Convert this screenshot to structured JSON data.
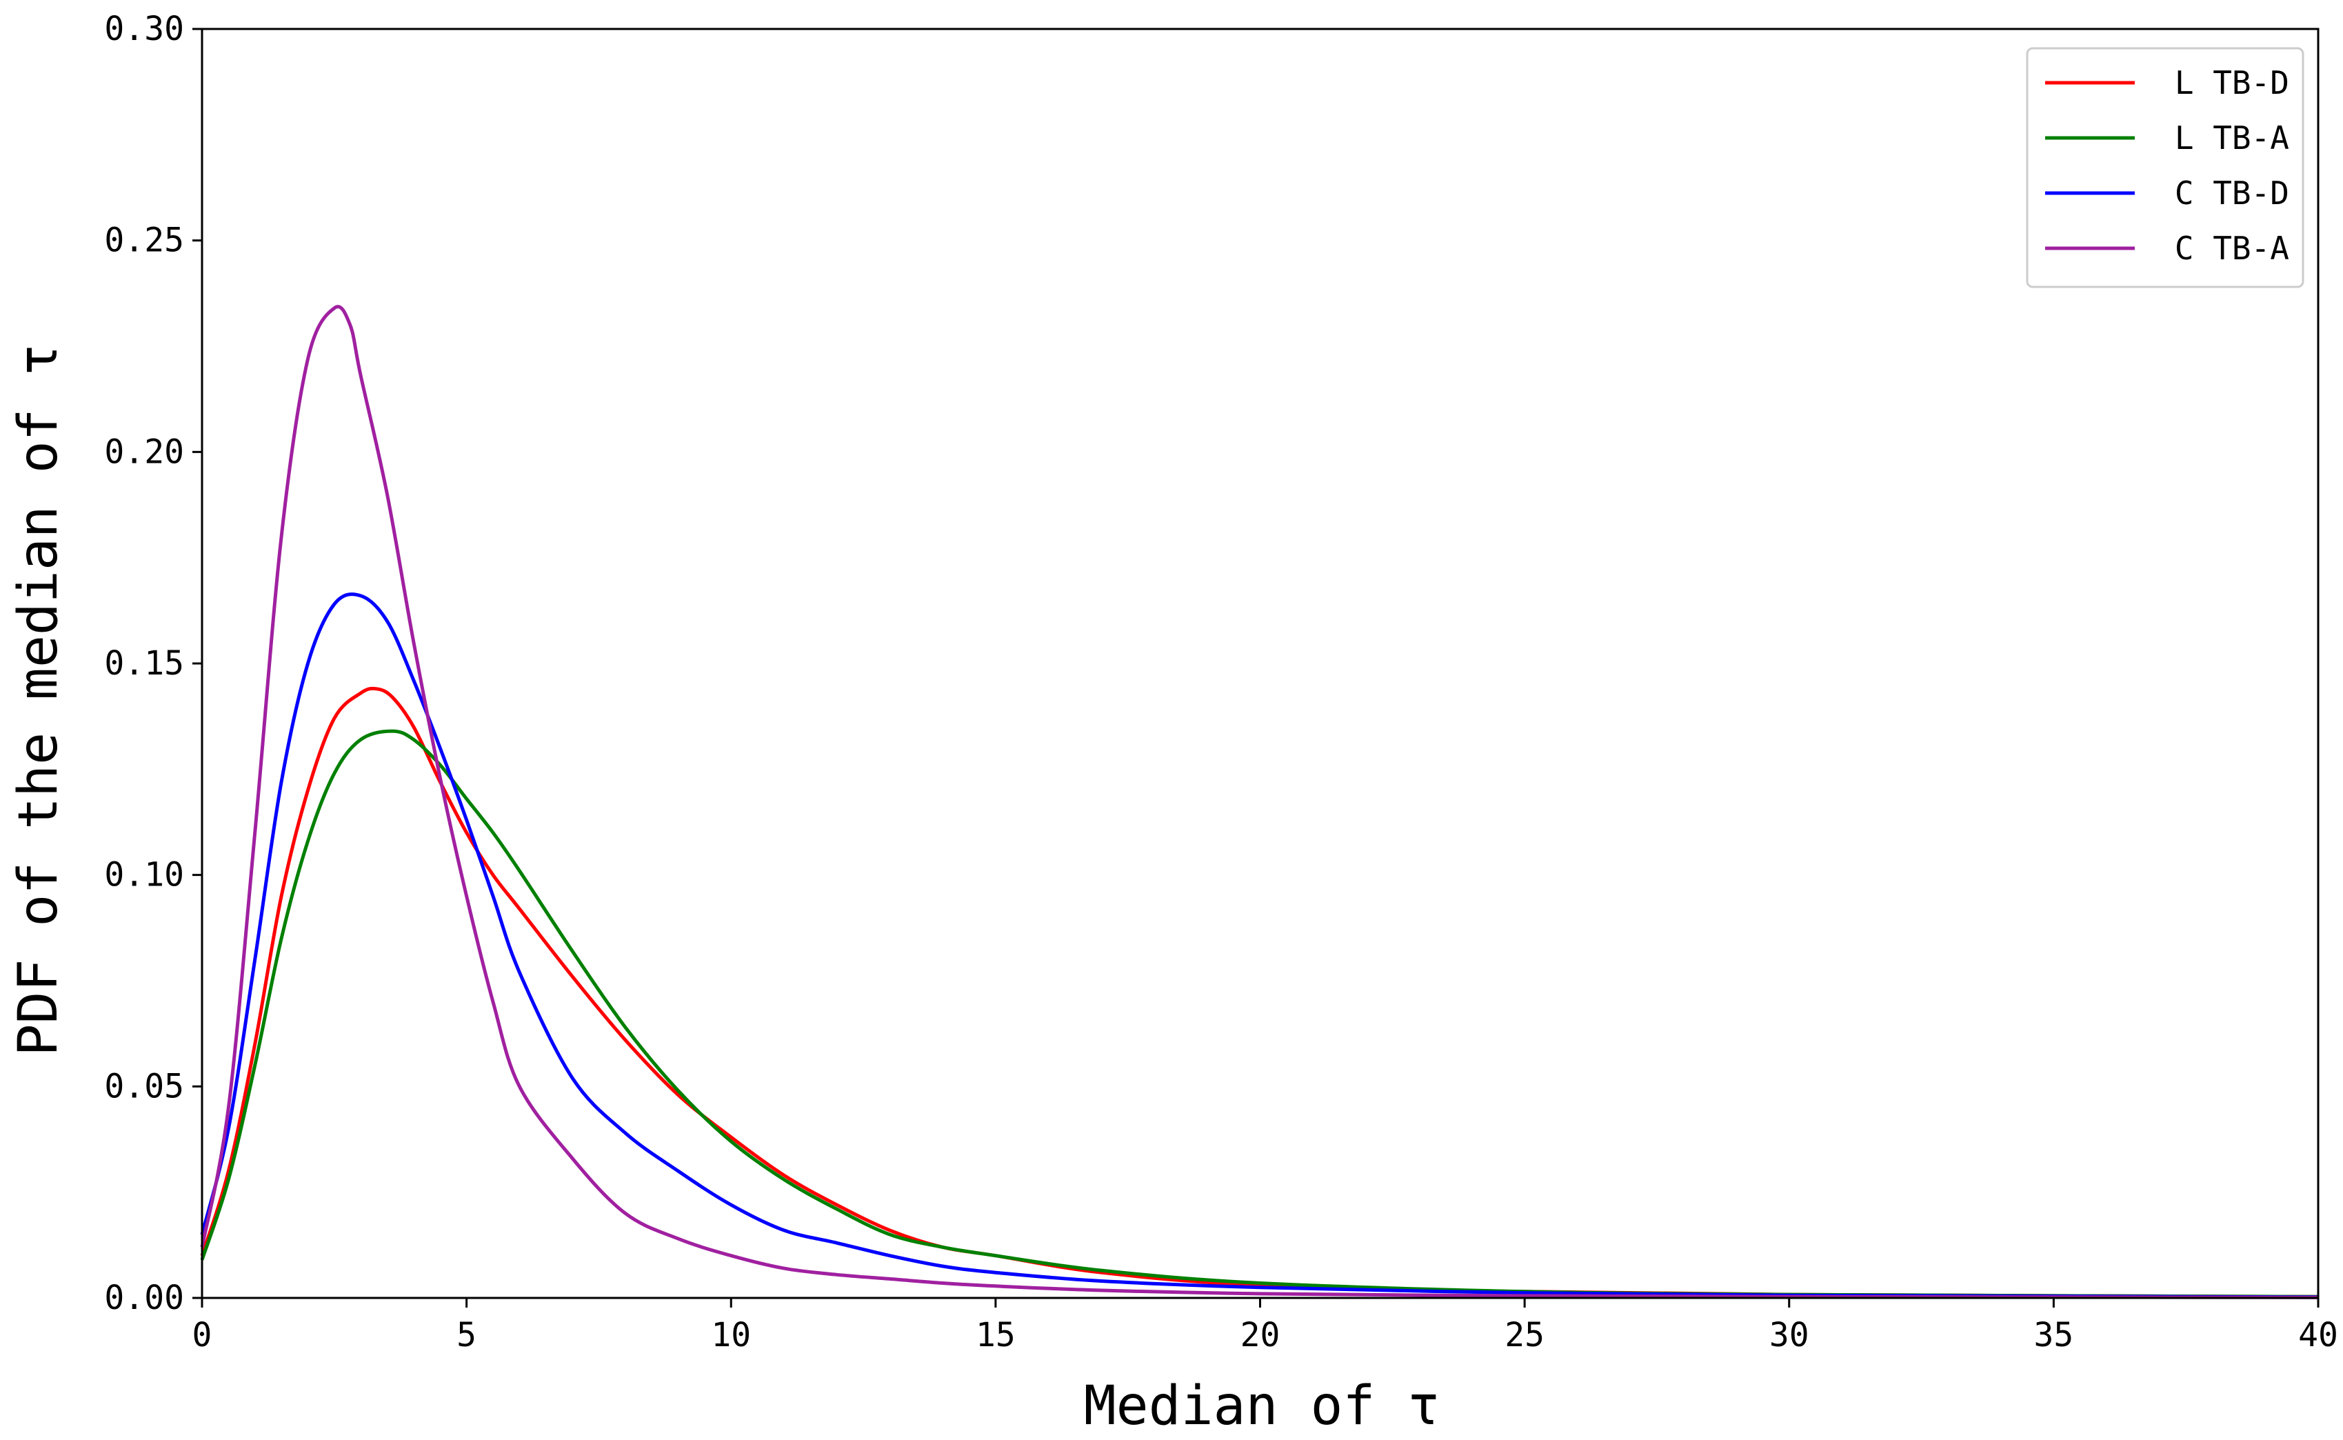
{
  "chart_data": {
    "type": "line",
    "title": "",
    "xlabel": "Median of τ",
    "ylabel": "PDF of the median of τ",
    "xlim": [
      0,
      40
    ],
    "ylim": [
      0,
      0.3
    ],
    "xticks": [
      "0",
      "5",
      "10",
      "15",
      "20",
      "25",
      "30",
      "35",
      "40"
    ],
    "yticks": [
      "0.00",
      "0.05",
      "0.10",
      "0.15",
      "0.20",
      "0.25",
      "0.30"
    ],
    "grid": false,
    "legend_position": "top-right",
    "series": [
      {
        "name": "L TB-D",
        "color": "#ff0000",
        "x": [
          0,
          0.5,
          1,
          1.5,
          2,
          2.5,
          3,
          3.3,
          3.6,
          4,
          4.5,
          5,
          5.5,
          6,
          7,
          8,
          9,
          10,
          11,
          12,
          13,
          14,
          15,
          17,
          20,
          25,
          30,
          35,
          40
        ],
        "y": [
          0.01,
          0.03,
          0.06,
          0.095,
          0.12,
          0.137,
          0.143,
          0.144,
          0.142,
          0.135,
          0.122,
          0.11,
          0.1,
          0.092,
          0.076,
          0.061,
          0.048,
          0.038,
          0.029,
          0.022,
          0.016,
          0.012,
          0.01,
          0.006,
          0.003,
          0.0015,
          0.0008,
          0.0005,
          0.0003
        ]
      },
      {
        "name": "L TB-A",
        "color": "#008000",
        "x": [
          0,
          0.5,
          1,
          1.5,
          2,
          2.5,
          3,
          3.6,
          4,
          4.5,
          5,
          5.5,
          6,
          7,
          8,
          9,
          10,
          11,
          12,
          13,
          14,
          15,
          17,
          20,
          25,
          30,
          35,
          40
        ],
        "y": [
          0.009,
          0.028,
          0.055,
          0.085,
          0.108,
          0.124,
          0.132,
          0.134,
          0.132,
          0.126,
          0.118,
          0.11,
          0.101,
          0.082,
          0.064,
          0.049,
          0.037,
          0.028,
          0.021,
          0.015,
          0.012,
          0.01,
          0.0065,
          0.0035,
          0.0015,
          0.0008,
          0.0005,
          0.0003
        ]
      },
      {
        "name": "C TB-D",
        "color": "#0000ff",
        "x": [
          0,
          0.5,
          1,
          1.5,
          2,
          2.5,
          3,
          3.5,
          4,
          4.5,
          5,
          5.5,
          6,
          7,
          8,
          9,
          10,
          11,
          12,
          13,
          14,
          15,
          17,
          20,
          25,
          30,
          35,
          40
        ],
        "y": [
          0.015,
          0.04,
          0.08,
          0.122,
          0.15,
          0.164,
          0.166,
          0.16,
          0.146,
          0.13,
          0.113,
          0.095,
          0.077,
          0.052,
          0.039,
          0.03,
          0.022,
          0.016,
          0.013,
          0.01,
          0.0075,
          0.006,
          0.004,
          0.0025,
          0.0012,
          0.0006,
          0.0004,
          0.0002
        ]
      },
      {
        "name": "C TB-A",
        "color": "#a020a0",
        "x": [
          0,
          0.5,
          1,
          1.5,
          2,
          2.5,
          2.8,
          3,
          3.5,
          4,
          4.5,
          5,
          5.5,
          6,
          7,
          8,
          9,
          10,
          11,
          12,
          13,
          14,
          15,
          17,
          20,
          25,
          30,
          35,
          40
        ],
        "y": [
          0.012,
          0.045,
          0.11,
          0.18,
          0.222,
          0.234,
          0.23,
          0.218,
          0.19,
          0.155,
          0.123,
          0.095,
          0.07,
          0.05,
          0.033,
          0.02,
          0.014,
          0.01,
          0.007,
          0.0055,
          0.0045,
          0.0035,
          0.0028,
          0.0018,
          0.001,
          0.0005,
          0.0003,
          0.0002,
          0.0001
        ]
      }
    ]
  }
}
